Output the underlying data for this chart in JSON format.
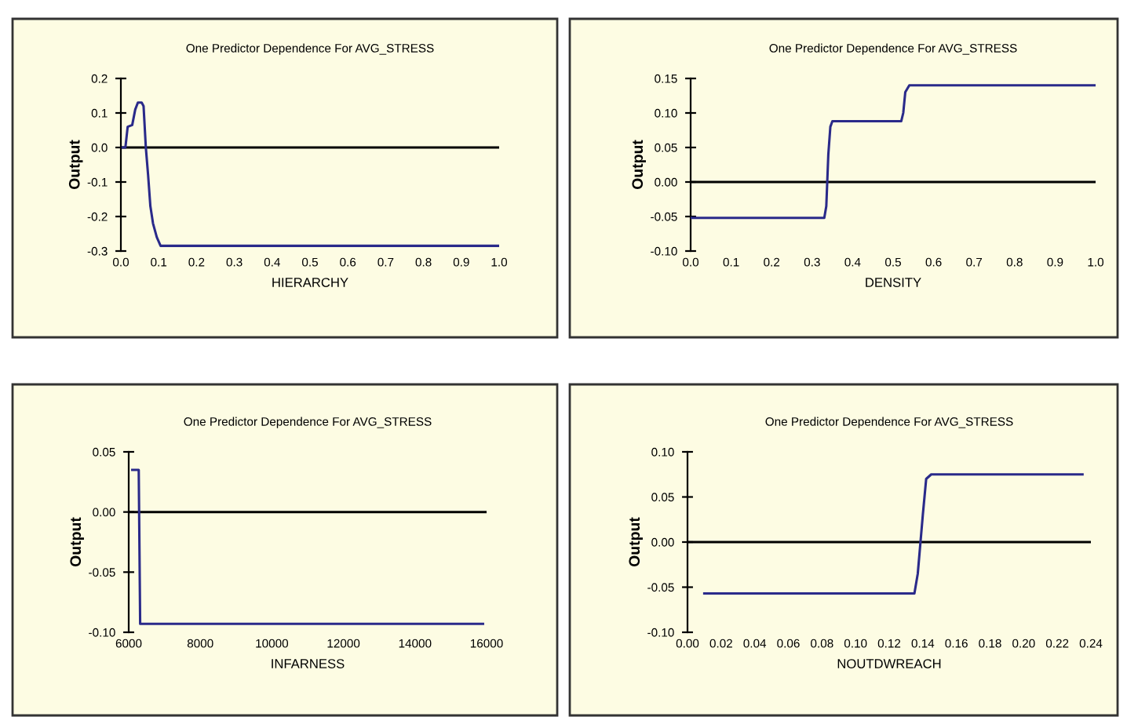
{
  "chart_data": [
    {
      "type": "line",
      "title": "One Predictor Dependence For AVG_STRESS",
      "xlabel": "HIERARCHY",
      "ylabel": "Output",
      "xlim": [
        0,
        1
      ],
      "xticks": [
        {
          "value": 0,
          "label": "0.0"
        },
        0.1,
        0.2,
        0.3,
        0.4,
        0.5,
        0.6,
        0.7,
        0.8,
        0.9,
        {
          "value": 1,
          "label": "1.0"
        }
      ],
      "ylim": [
        -0.3,
        0.2
      ],
      "yticks": [
        -0.3,
        -0.2,
        -0.1,
        {
          "value": 0,
          "label": "0.0"
        },
        0.1,
        0.2
      ],
      "ref_lines": [
        {
          "axis": "y",
          "value": 0,
          "label": null,
          "color": "#000000"
        }
      ],
      "grid": false,
      "legend": false,
      "series": [
        {
          "color": "#2a2a8a",
          "x": [
            0.005,
            0.012,
            0.018,
            0.03,
            0.038,
            0.045,
            0.055,
            0.06,
            0.066,
            0.072,
            0.078,
            0.085,
            0.095,
            0.105,
            0.11,
            1.0
          ],
          "values": [
            0.0,
            0.0,
            0.06,
            0.065,
            0.11,
            0.13,
            0.13,
            0.12,
            0.0,
            -0.08,
            -0.17,
            -0.22,
            -0.26,
            -0.285,
            -0.285,
            -0.285
          ]
        }
      ]
    },
    {
      "type": "line",
      "title": "One Predictor Dependence For AVG_STRESS",
      "xlabel": "DENSITY",
      "ylabel": "Output",
      "xlim": [
        0,
        1
      ],
      "xticks": [
        {
          "value": 0,
          "label": "0.0"
        },
        0.1,
        0.2,
        0.3,
        0.4,
        0.5,
        0.6,
        0.7,
        0.8,
        0.9,
        {
          "value": 1,
          "label": "1.0"
        }
      ],
      "ylim": [
        -0.1,
        0.15
      ],
      "yticks": [
        {
          "value": -0.1,
          "label": "-0.10"
        },
        {
          "value": -0.05,
          "label": "-0.05"
        },
        {
          "value": 0,
          "label": "0.00"
        },
        {
          "value": 0.05,
          "label": "0.05"
        },
        {
          "value": 0.1,
          "label": "0.10"
        },
        {
          "value": 0.15,
          "label": "0.15"
        }
      ],
      "ref_lines": [
        {
          "axis": "y",
          "value": 0,
          "label": null,
          "color": "#000000"
        }
      ],
      "grid": false,
      "legend": false,
      "series": [
        {
          "color": "#2a2a8a",
          "x": [
            0.0,
            0.33,
            0.335,
            0.34,
            0.345,
            0.35,
            0.36,
            0.52,
            0.525,
            0.53,
            0.54,
            1.0
          ],
          "values": [
            -0.052,
            -0.052,
            -0.035,
            0.04,
            0.08,
            0.088,
            0.088,
            0.088,
            0.1,
            0.13,
            0.14,
            0.14
          ]
        }
      ]
    },
    {
      "type": "line",
      "title": "One Predictor Dependence For AVG_STRESS",
      "xlabel": "INFARNESS",
      "ylabel": "Output",
      "xlim": [
        6000,
        16000
      ],
      "xticks": [
        6000,
        8000,
        10000,
        12000,
        14000,
        16000
      ],
      "ylim": [
        -0.1,
        0.05
      ],
      "yticks": [
        {
          "value": -0.1,
          "label": "-0.10"
        },
        {
          "value": -0.05,
          "label": "-0.05"
        },
        {
          "value": 0,
          "label": "0.00"
        },
        {
          "value": 0.05,
          "label": "0.05"
        }
      ],
      "ref_lines": [
        {
          "axis": "y",
          "value": 0,
          "label": null,
          "color": "#000000"
        }
      ],
      "grid": false,
      "legend": false,
      "series": [
        {
          "color": "#2a2a8a",
          "x": [
            6100,
            6280,
            6320,
            15900
          ],
          "values": [
            0.035,
            0.035,
            -0.093,
            -0.093
          ]
        }
      ]
    },
    {
      "type": "line",
      "title": "One Predictor Dependence For AVG_STRESS",
      "xlabel": "NOUTDWREACH",
      "ylabel": "Output",
      "xlim": [
        0,
        0.24
      ],
      "xticks": [
        {
          "value": 0,
          "label": "0.00"
        },
        {
          "value": 0.02,
          "label": "0.02"
        },
        {
          "value": 0.04,
          "label": "0.04"
        },
        {
          "value": 0.06,
          "label": "0.06"
        },
        {
          "value": 0.08,
          "label": "0.08"
        },
        {
          "value": 0.1,
          "label": "0.10"
        },
        {
          "value": 0.12,
          "label": "0.12"
        },
        {
          "value": 0.14,
          "label": "0.14"
        },
        {
          "value": 0.16,
          "label": "0.16"
        },
        {
          "value": 0.18,
          "label": "0.18"
        },
        {
          "value": 0.2,
          "label": "0.20"
        },
        {
          "value": 0.22,
          "label": "0.22"
        },
        {
          "value": 0.24,
          "label": "0.24"
        }
      ],
      "ylim": [
        -0.1,
        0.1
      ],
      "yticks": [
        {
          "value": -0.1,
          "label": "-0.10"
        },
        {
          "value": -0.05,
          "label": "-0.05"
        },
        {
          "value": 0,
          "label": "0.00"
        },
        {
          "value": 0.05,
          "label": "0.05"
        },
        {
          "value": 0.1,
          "label": "0.10"
        }
      ],
      "ref_lines": [
        {
          "axis": "y",
          "value": 0,
          "label": null,
          "color": "#000000"
        }
      ],
      "grid": false,
      "legend": false,
      "series": [
        {
          "color": "#2a2a8a",
          "x": [
            0.01,
            0.135,
            0.137,
            0.14,
            0.142,
            0.145,
            0.235
          ],
          "values": [
            -0.057,
            -0.057,
            -0.035,
            0.03,
            0.07,
            0.075,
            0.075
          ]
        }
      ]
    }
  ]
}
